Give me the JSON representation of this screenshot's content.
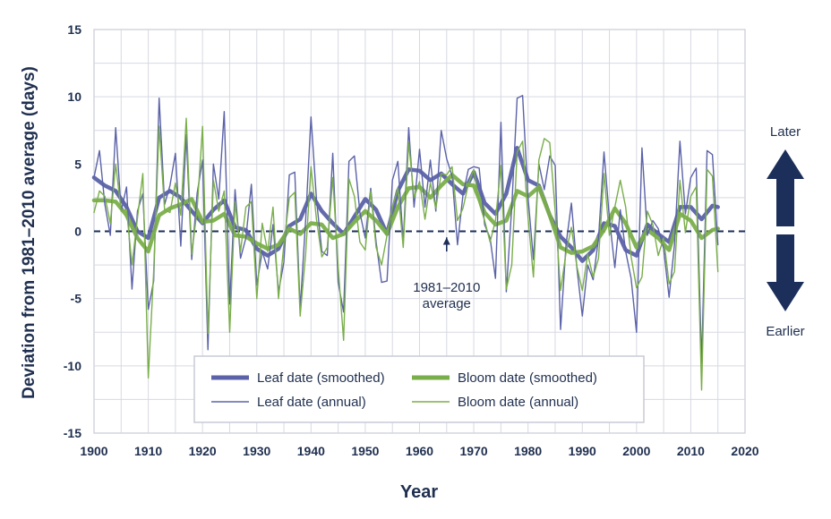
{
  "chart_data": {
    "type": "line",
    "xlabel": "Year",
    "ylabel": "Deviation from 1981–2010 average (days)",
    "xlim": [
      1900,
      2020
    ],
    "ylim": [
      -15,
      15
    ],
    "x_ticks": [
      1900,
      1910,
      1920,
      1930,
      1940,
      1950,
      1960,
      1970,
      1980,
      1990,
      2000,
      2010,
      2020
    ],
    "y_ticks": [
      15,
      10,
      5,
      0,
      -5,
      -10,
      -15
    ],
    "grid": true,
    "legend_position": "bottom-center",
    "reference_line": {
      "y": 0,
      "label_line1": "1981–2010",
      "label_line2": "average",
      "x": 1965
    },
    "direction_labels": {
      "later": "Later",
      "earlier": "Earlier"
    },
    "series": [
      {
        "name": "Leaf date (annual)",
        "color": "#5b62a8",
        "style": "thin",
        "x": [
          1900,
          1901,
          1902,
          1903,
          1904,
          1905,
          1906,
          1907,
          1908,
          1909,
          1910,
          1911,
          1912,
          1913,
          1914,
          1915,
          1916,
          1917,
          1918,
          1919,
          1920,
          1921,
          1922,
          1923,
          1924,
          1925,
          1926,
          1927,
          1928,
          1929,
          1930,
          1931,
          1932,
          1933,
          1934,
          1935,
          1936,
          1937,
          1938,
          1939,
          1940,
          1941,
          1942,
          1943,
          1944,
          1945,
          1946,
          1947,
          1948,
          1949,
          1950,
          1951,
          1952,
          1953,
          1954,
          1955,
          1956,
          1957,
          1958,
          1959,
          1960,
          1961,
          1962,
          1963,
          1964,
          1965,
          1966,
          1967,
          1968,
          1969,
          1970,
          1971,
          1972,
          1973,
          1974,
          1975,
          1976,
          1977,
          1978,
          1979,
          1980,
          1981,
          1982,
          1983,
          1984,
          1985,
          1986,
          1987,
          1988,
          1989,
          1990,
          1991,
          1992,
          1993,
          1994,
          1995,
          1996,
          1997,
          1998,
          1999,
          2000,
          2001,
          2002,
          2003,
          2004,
          2005,
          2006,
          2007,
          2008,
          2009,
          2010,
          2011,
          2012,
          2013,
          2014,
          2015
        ],
        "values": [
          4,
          6,
          2,
          -0.3,
          7.7,
          1.5,
          3.3,
          -4.3,
          1.5,
          2.8,
          -5.8,
          -3.7,
          9.9,
          2,
          3.4,
          5.8,
          -1.1,
          7.2,
          -2.1,
          2.8,
          5.3,
          -8.8,
          5,
          2.4,
          8.9,
          -5.4,
          3.1,
          -2,
          -0.5,
          3.5,
          -4,
          -1.5,
          -2.8,
          0.5,
          -4.5,
          -2.3,
          4.2,
          4.4,
          -5.8,
          0.8,
          8.5,
          2.4,
          -1.5,
          -1.8,
          5.8,
          -3.8,
          -6,
          5.2,
          5.6,
          1.4,
          -0.5,
          3.2,
          -0.8,
          -3.8,
          -3.7,
          3.8,
          5.2,
          -0.8,
          7.7,
          1.8,
          6.1,
          1.8,
          5.3,
          1.5,
          7.5,
          5.4,
          4.1,
          -1,
          2.7,
          4.6,
          4.8,
          4.7,
          0.5,
          -0.5,
          -3.5,
          8.1,
          -4.5,
          1.8,
          9.9,
          10.1,
          2.5,
          -2.1,
          5,
          3.1,
          5.6,
          4.9,
          -7.3,
          -1,
          2.1,
          -2.7,
          -6.3,
          -2.5,
          -3.6,
          -0.5,
          5.9,
          1,
          -2.7,
          1.6,
          -1.5,
          -3.5,
          -7.5,
          6.2,
          -0.3,
          0.8,
          0.2,
          -1.3,
          -4.9,
          -1,
          6.7,
          1.3,
          4,
          4.7,
          -9.8,
          6,
          5.7,
          -1
        ]
      },
      {
        "name": "Bloom date (annual)",
        "color": "#7aae4a",
        "style": "thin",
        "x": [
          1900,
          1901,
          1902,
          1903,
          1904,
          1905,
          1906,
          1907,
          1908,
          1909,
          1910,
          1911,
          1912,
          1913,
          1914,
          1915,
          1916,
          1917,
          1918,
          1919,
          1920,
          1921,
          1922,
          1923,
          1924,
          1925,
          1926,
          1927,
          1928,
          1929,
          1930,
          1931,
          1932,
          1933,
          1934,
          1935,
          1936,
          1937,
          1938,
          1939,
          1940,
          1941,
          1942,
          1943,
          1944,
          1945,
          1946,
          1947,
          1948,
          1949,
          1950,
          1951,
          1952,
          1953,
          1954,
          1955,
          1956,
          1957,
          1958,
          1959,
          1960,
          1961,
          1962,
          1963,
          1964,
          1965,
          1966,
          1967,
          1968,
          1969,
          1970,
          1971,
          1972,
          1973,
          1974,
          1975,
          1976,
          1977,
          1978,
          1979,
          1980,
          1981,
          1982,
          1983,
          1984,
          1985,
          1986,
          1987,
          1988,
          1989,
          1990,
          1991,
          1992,
          1993,
          1994,
          1995,
          1996,
          1997,
          1998,
          1999,
          2000,
          2001,
          2002,
          2003,
          2004,
          2005,
          2006,
          2007,
          2008,
          2009,
          2010,
          2011,
          2012,
          2013,
          2014,
          2015
        ],
        "values": [
          1.4,
          3,
          2.6,
          0.6,
          5,
          1.5,
          1.6,
          -2.5,
          1,
          4.3,
          -10.9,
          -3,
          7.8,
          1.6,
          1.4,
          3.6,
          1.2,
          8.4,
          -1.7,
          1.6,
          7.8,
          -7.6,
          3.8,
          1.5,
          3,
          -7.5,
          2.2,
          -1.5,
          1.8,
          2.2,
          -5,
          0.6,
          -1.5,
          1.8,
          -5,
          -1,
          2.5,
          2.9,
          -6.3,
          -1.7,
          4.8,
          0.9,
          -1.9,
          -1.2,
          4,
          -2.6,
          -8.1,
          3.9,
          2.6,
          -0.8,
          -1.4,
          3,
          -1.2,
          -2.5,
          -0.3,
          1.8,
          3.2,
          -1.2,
          6.6,
          2.5,
          3.7,
          0.9,
          3.6,
          1.7,
          4.3,
          4.2,
          4.8,
          0.8,
          1.7,
          3.5,
          4.6,
          2.1,
          0.8,
          -0.8,
          0.8,
          4.9,
          -4.3,
          -2.5,
          5.9,
          6.7,
          1,
          -3.4,
          5.3,
          6.9,
          6.6,
          1.5,
          -4.4,
          -1.6,
          0.3,
          -2.6,
          -4.4,
          -1.7,
          -3.4,
          -2,
          4.3,
          -0.3,
          1.8,
          3.8,
          1.8,
          -1.9,
          -4.2,
          -3.4,
          1.5,
          0.5,
          -1.8,
          -0.5,
          -3.9,
          -3,
          3.8,
          -0.1,
          2.6,
          3.3,
          -11.8,
          4.6,
          4.1,
          -3
        ]
      },
      {
        "name": "Leaf date (smoothed)",
        "color": "#5b62a8",
        "style": "thick",
        "x": [
          1900,
          1902,
          1904,
          1906,
          1908,
          1910,
          1912,
          1914,
          1916,
          1918,
          1920,
          1922,
          1924,
          1926,
          1928,
          1930,
          1932,
          1934,
          1936,
          1938,
          1940,
          1942,
          1944,
          1946,
          1948,
          1950,
          1952,
          1954,
          1956,
          1958,
          1960,
          1962,
          1964,
          1966,
          1968,
          1970,
          1972,
          1974,
          1976,
          1978,
          1980,
          1982,
          1984,
          1986,
          1988,
          1990,
          1992,
          1994,
          1996,
          1998,
          2000,
          2002,
          2004,
          2006,
          2008,
          2010,
          2012,
          2014,
          2015
        ],
        "values": [
          4,
          3.4,
          3,
          1.8,
          0,
          -0.5,
          2.5,
          3,
          2.5,
          1.5,
          0.6,
          1.6,
          2.3,
          0.3,
          0.1,
          -1.3,
          -1.8,
          -1.3,
          0.4,
          0.9,
          2.8,
          1.5,
          0.6,
          -0.2,
          1.1,
          2.4,
          1.6,
          -0.2,
          3,
          4.6,
          4.5,
          3.8,
          4.3,
          3.5,
          2.8,
          4.4,
          2.1,
          1.3,
          2.8,
          6.2,
          3.8,
          3.4,
          1.2,
          -0.4,
          -1.2,
          -2.2,
          -1.4,
          0.6,
          0.4,
          -1.4,
          -1.8,
          0.5,
          -0.2,
          -0.8,
          1.8,
          1.8,
          0.9,
          1.9,
          1.8
        ]
      },
      {
        "name": "Bloom date (smoothed)",
        "color": "#7aae4a",
        "style": "thick",
        "x": [
          1900,
          1902,
          1904,
          1906,
          1908,
          1910,
          1912,
          1914,
          1916,
          1918,
          1920,
          1922,
          1924,
          1926,
          1928,
          1930,
          1932,
          1934,
          1936,
          1938,
          1940,
          1942,
          1944,
          1946,
          1948,
          1950,
          1952,
          1954,
          1956,
          1958,
          1960,
          1962,
          1964,
          1966,
          1968,
          1970,
          1972,
          1974,
          1976,
          1978,
          1980,
          1982,
          1984,
          1986,
          1988,
          1990,
          1992,
          1994,
          1996,
          1998,
          2000,
          2002,
          2004,
          2006,
          2008,
          2010,
          2012,
          2014,
          2015
        ],
        "values": [
          2.3,
          2.3,
          2.2,
          1.2,
          -0.5,
          -1.5,
          1.2,
          1.7,
          2,
          2.4,
          0.7,
          0.8,
          1.3,
          -0.3,
          -0.4,
          -0.9,
          -1.3,
          -1,
          0.2,
          -0.2,
          0.6,
          0.5,
          -0.5,
          -0.2,
          0.7,
          1.5,
          0.8,
          -0.2,
          1.8,
          3.2,
          3.3,
          2.5,
          3.4,
          4.2,
          3.5,
          3.4,
          1.4,
          0.5,
          0.8,
          3,
          2.6,
          3.3,
          1.2,
          -1.2,
          -1.6,
          -1.5,
          -1.1,
          0.1,
          1.7,
          0.6,
          -1.2,
          0.1,
          -0.5,
          -1.4,
          1.3,
          0.8,
          -0.5,
          0.1,
          0.2
        ]
      }
    ]
  }
}
